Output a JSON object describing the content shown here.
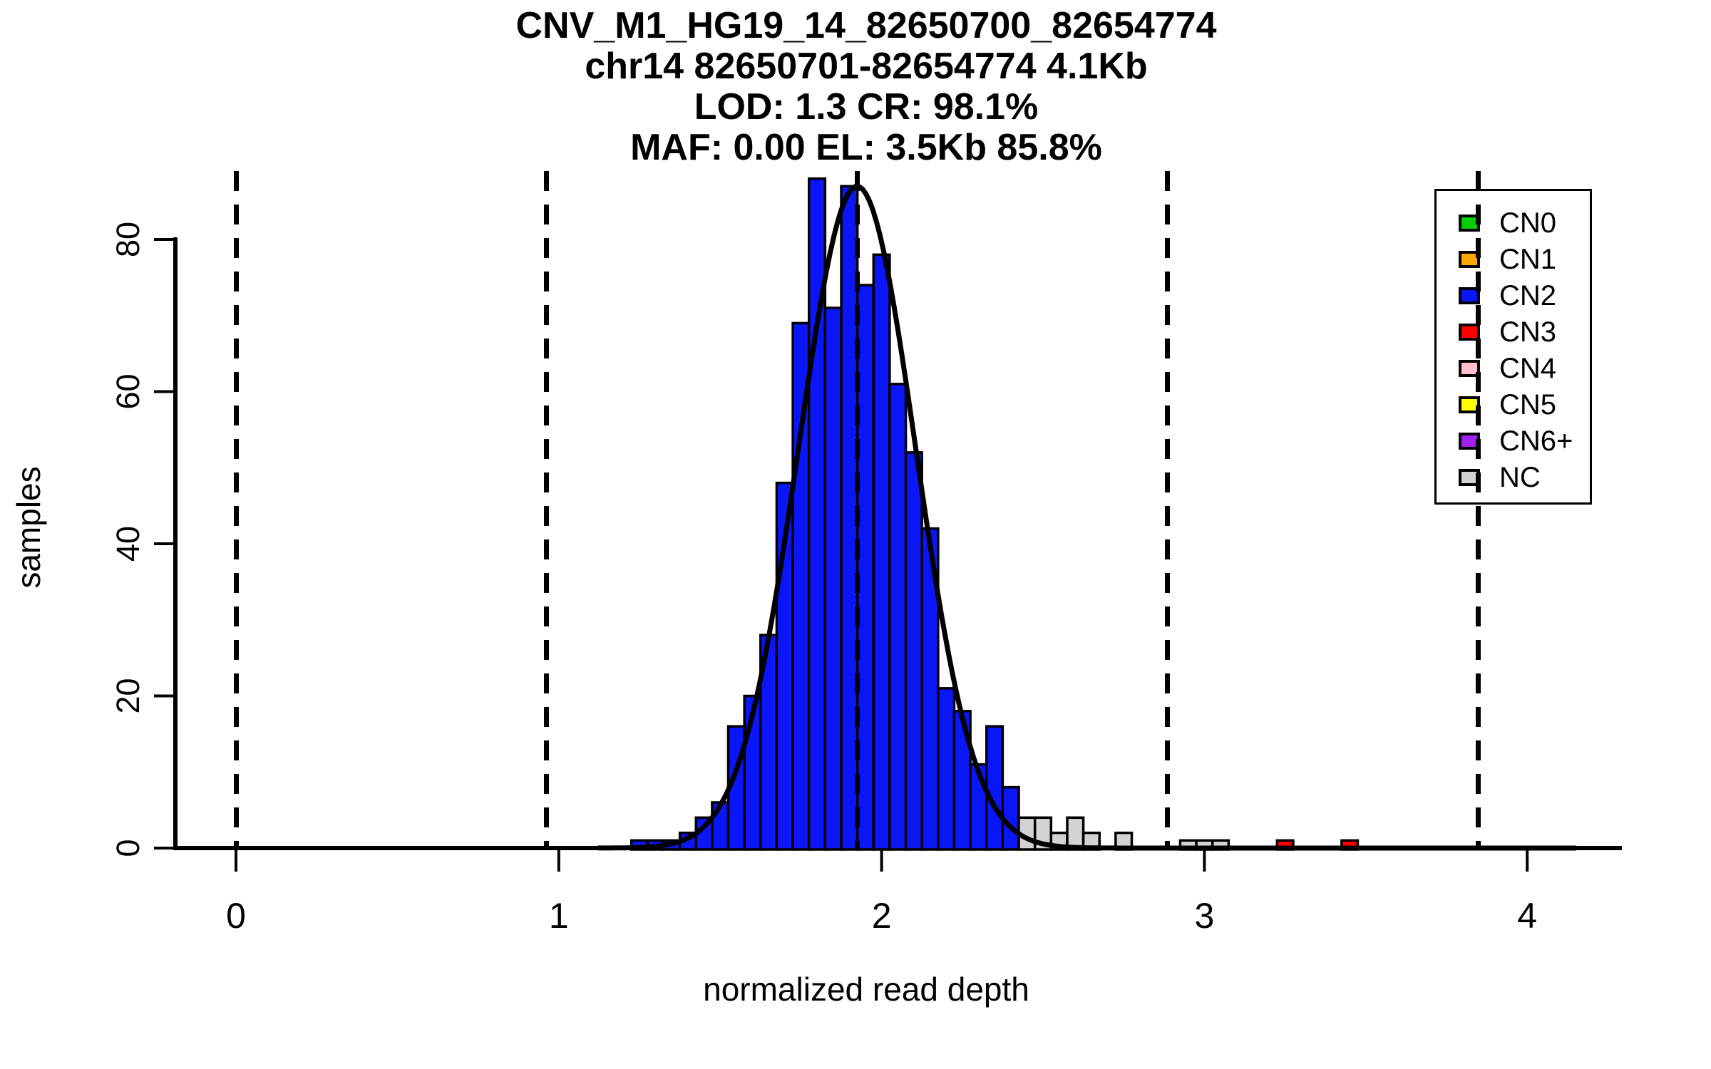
{
  "title": {
    "line1": "CNV_M1_HG19_14_82650700_82654774",
    "line2": "chr14 82650701-82654774 4.1Kb",
    "line3": "LOD: 1.3 CR: 98.1%",
    "line4": "MAF: 0.00 EL: 3.5Kb 85.8%"
  },
  "axes": {
    "x_label": "normalized read depth",
    "y_label": "samples",
    "x_ticks": [
      "0",
      "1",
      "2",
      "3",
      "4"
    ],
    "x_tick_values": [
      0,
      1,
      2,
      3,
      4
    ],
    "y_ticks": [
      "0",
      "20",
      "40",
      "60",
      "80"
    ],
    "y_tick_values": [
      0,
      20,
      40,
      60,
      80
    ]
  },
  "legend": {
    "items": [
      {
        "label": "CN0",
        "color": "#00CE00"
      },
      {
        "label": "CN1",
        "color": "#FFA500"
      },
      {
        "label": "CN2",
        "color": "#0B16F8"
      },
      {
        "label": "CN3",
        "color": "#FF0000"
      },
      {
        "label": "CN4",
        "color": "#FFC0CB"
      },
      {
        "label": "CN5",
        "color": "#FFFF00"
      },
      {
        "label": "CN6+",
        "color": "#A020F0"
      },
      {
        "label": "NC",
        "color": "#D3D3D3"
      }
    ]
  },
  "chart_data": {
    "type": "bar",
    "subtype": "histogram-with-gaussian-fit",
    "xlabel": "normalized read depth",
    "ylabel": "samples",
    "xlim": [
      -0.19,
      4.3
    ],
    "ylim": [
      0,
      91
    ],
    "grid": false,
    "legend_position": "top-right",
    "bin_width": 0.05,
    "series": [
      {
        "name": "CN2",
        "color": "#0B16F8",
        "bins": [
          {
            "x": 1.225,
            "count": 1
          },
          {
            "x": 1.275,
            "count": 1
          },
          {
            "x": 1.325,
            "count": 1
          },
          {
            "x": 1.375,
            "count": 2
          },
          {
            "x": 1.425,
            "count": 4
          },
          {
            "x": 1.475,
            "count": 6
          },
          {
            "x": 1.525,
            "count": 16
          },
          {
            "x": 1.575,
            "count": 20
          },
          {
            "x": 1.625,
            "count": 28
          },
          {
            "x": 1.675,
            "count": 48
          },
          {
            "x": 1.725,
            "count": 69
          },
          {
            "x": 1.775,
            "count": 88
          },
          {
            "x": 1.825,
            "count": 71
          },
          {
            "x": 1.875,
            "count": 87
          },
          {
            "x": 1.925,
            "count": 74
          },
          {
            "x": 1.975,
            "count": 78
          },
          {
            "x": 2.025,
            "count": 61
          },
          {
            "x": 2.075,
            "count": 52
          },
          {
            "x": 2.125,
            "count": 42
          },
          {
            "x": 2.175,
            "count": 21
          },
          {
            "x": 2.225,
            "count": 18
          },
          {
            "x": 2.275,
            "count": 11
          },
          {
            "x": 2.325,
            "count": 16
          },
          {
            "x": 2.375,
            "count": 8
          }
        ]
      },
      {
        "name": "NC",
        "color": "#D3D3D3",
        "bins": [
          {
            "x": 2.425,
            "count": 4
          },
          {
            "x": 2.475,
            "count": 4
          },
          {
            "x": 2.525,
            "count": 2
          },
          {
            "x": 2.575,
            "count": 4
          },
          {
            "x": 2.625,
            "count": 2
          },
          {
            "x": 2.725,
            "count": 2
          },
          {
            "x": 2.925,
            "count": 1
          },
          {
            "x": 2.975,
            "count": 1
          },
          {
            "x": 3.025,
            "count": 1
          }
        ]
      },
      {
        "name": "CN3",
        "color": "#FF0000",
        "bins": [
          {
            "x": 3.225,
            "count": 1
          },
          {
            "x": 3.425,
            "count": 1
          }
        ]
      }
    ],
    "fit_curve": {
      "type": "gaussian",
      "mean": 1.924,
      "sd": 0.181,
      "peak": 87
    },
    "dashed_guides_x": [
      0,
      0.962,
      1.924,
      2.886,
      3.848
    ]
  }
}
